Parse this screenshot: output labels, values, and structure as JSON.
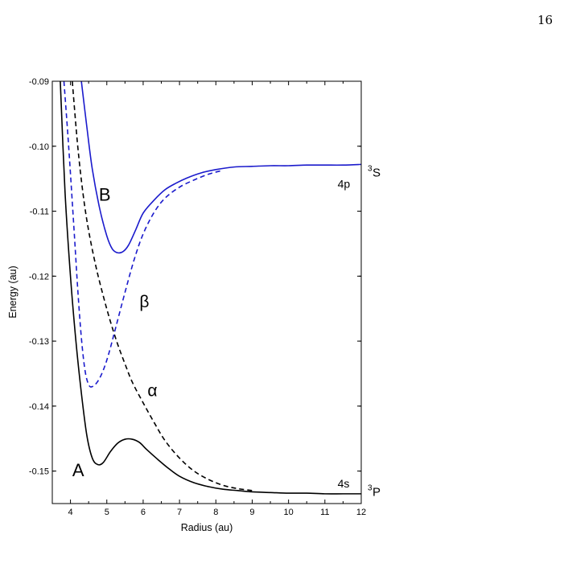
{
  "page_number": "16",
  "footer_text": "",
  "chart_data": {
    "type": "line",
    "title": "",
    "xlabel": "Radius (au)",
    "ylabel": "Energy (au)",
    "xlim": [
      3.5,
      12
    ],
    "ylim": [
      -0.155,
      -0.09
    ],
    "x_ticks": [
      4,
      5,
      6,
      7,
      8,
      9,
      10,
      11,
      12
    ],
    "y_ticks": [
      -0.15,
      -0.14,
      -0.13,
      -0.12,
      -0.11,
      -0.1,
      -0.09
    ],
    "y_tick_labels": [
      "-0.15",
      "-0.14",
      "-0.13",
      "-0.12",
      "-0.11",
      "-0.10",
      "-0.09"
    ],
    "grid": false,
    "colors": {
      "black": "#000000",
      "blue": "#1a1acc"
    },
    "series": [
      {
        "name": "A",
        "color": "#000000",
        "style": "solid",
        "x": [
          3.72,
          3.85,
          4.0,
          4.15,
          4.3,
          4.45,
          4.6,
          4.75,
          4.9,
          5.1,
          5.3,
          5.5,
          5.7,
          5.9,
          6.1,
          6.4,
          6.7,
          7.0,
          7.4,
          7.8,
          8.2,
          8.6,
          9.0,
          9.5,
          10.0,
          10.5,
          11.0,
          11.5,
          12.0
        ],
        "y": [
          -0.09,
          -0.107,
          -0.12,
          -0.13,
          -0.138,
          -0.1445,
          -0.148,
          -0.149,
          -0.1487,
          -0.147,
          -0.1457,
          -0.1451,
          -0.1451,
          -0.1456,
          -0.1467,
          -0.1482,
          -0.1496,
          -0.1508,
          -0.1518,
          -0.1524,
          -0.1528,
          -0.153,
          -0.1532,
          -0.1533,
          -0.1534,
          -0.1534,
          -0.1535,
          -0.1535,
          -0.1535
        ]
      },
      {
        "name": "B",
        "color": "#1a1acc",
        "style": "solid",
        "x": [
          4.3,
          4.45,
          4.6,
          4.8,
          5.0,
          5.15,
          5.3,
          5.45,
          5.6,
          5.8,
          6.0,
          6.3,
          6.6,
          6.9,
          7.2,
          7.6,
          8.0,
          8.5,
          9.0,
          9.5,
          10.0,
          10.5,
          11.0,
          11.5,
          12.0
        ],
        "y": [
          -0.09,
          -0.097,
          -0.1035,
          -0.1095,
          -0.1138,
          -0.1158,
          -0.1164,
          -0.1162,
          -0.1152,
          -0.1128,
          -0.1103,
          -0.1083,
          -0.1067,
          -0.1057,
          -0.1049,
          -0.1041,
          -0.1036,
          -0.1032,
          -0.1031,
          -0.103,
          -0.103,
          -0.1029,
          -0.1029,
          -0.1029,
          -0.1028
        ]
      },
      {
        "name": "α",
        "color": "#000000",
        "style": "dashed",
        "x": [
          4.05,
          4.2,
          4.35,
          4.5,
          4.7,
          4.9,
          5.1,
          5.3,
          5.5,
          5.7,
          6.0,
          6.3,
          6.6,
          7.0,
          7.4,
          7.8,
          8.2,
          8.6,
          9.0
        ],
        "y": [
          -0.09,
          -0.1,
          -0.1075,
          -0.113,
          -0.1185,
          -0.123,
          -0.127,
          -0.1305,
          -0.1335,
          -0.1363,
          -0.1395,
          -0.1425,
          -0.1453,
          -0.148,
          -0.15,
          -0.1513,
          -0.1522,
          -0.1527,
          -0.153
        ]
      },
      {
        "name": "β",
        "color": "#1a1acc",
        "style": "dashed",
        "x": [
          3.82,
          3.95,
          4.1,
          4.2,
          4.3,
          4.4,
          4.5,
          4.6,
          4.75,
          4.9,
          5.05,
          5.25,
          5.5,
          5.75,
          6.0,
          6.3,
          6.6,
          7.0,
          7.4,
          7.8,
          8.2
        ],
        "y": [
          -0.09,
          -0.1,
          -0.113,
          -0.122,
          -0.1295,
          -0.1345,
          -0.1367,
          -0.137,
          -0.1362,
          -0.1345,
          -0.132,
          -0.1278,
          -0.1225,
          -0.1175,
          -0.1135,
          -0.1102,
          -0.108,
          -0.1063,
          -0.1052,
          -0.1043,
          -0.1037
        ]
      }
    ],
    "annotations": [
      {
        "text": "A",
        "x": 4.05,
        "y": -0.1508,
        "size": 22
      },
      {
        "text": "B",
        "x": 4.78,
        "y": -0.1084,
        "size": 22
      },
      {
        "text": "α",
        "x": 6.12,
        "y": -0.1385,
        "size": 21
      },
      {
        "text": "β",
        "x": 5.9,
        "y": -0.1248,
        "size": 21
      },
      {
        "text": "4p",
        "x": 11.35,
        "y": -0.1064,
        "size": 14
      },
      {
        "text": "4s",
        "x": 11.35,
        "y": -0.1525,
        "size": 14
      }
    ],
    "state_labels": [
      {
        "base": "S",
        "sup": "3",
        "y": -0.1047
      },
      {
        "base": "P",
        "sup": "3",
        "y": -0.1538
      }
    ]
  }
}
